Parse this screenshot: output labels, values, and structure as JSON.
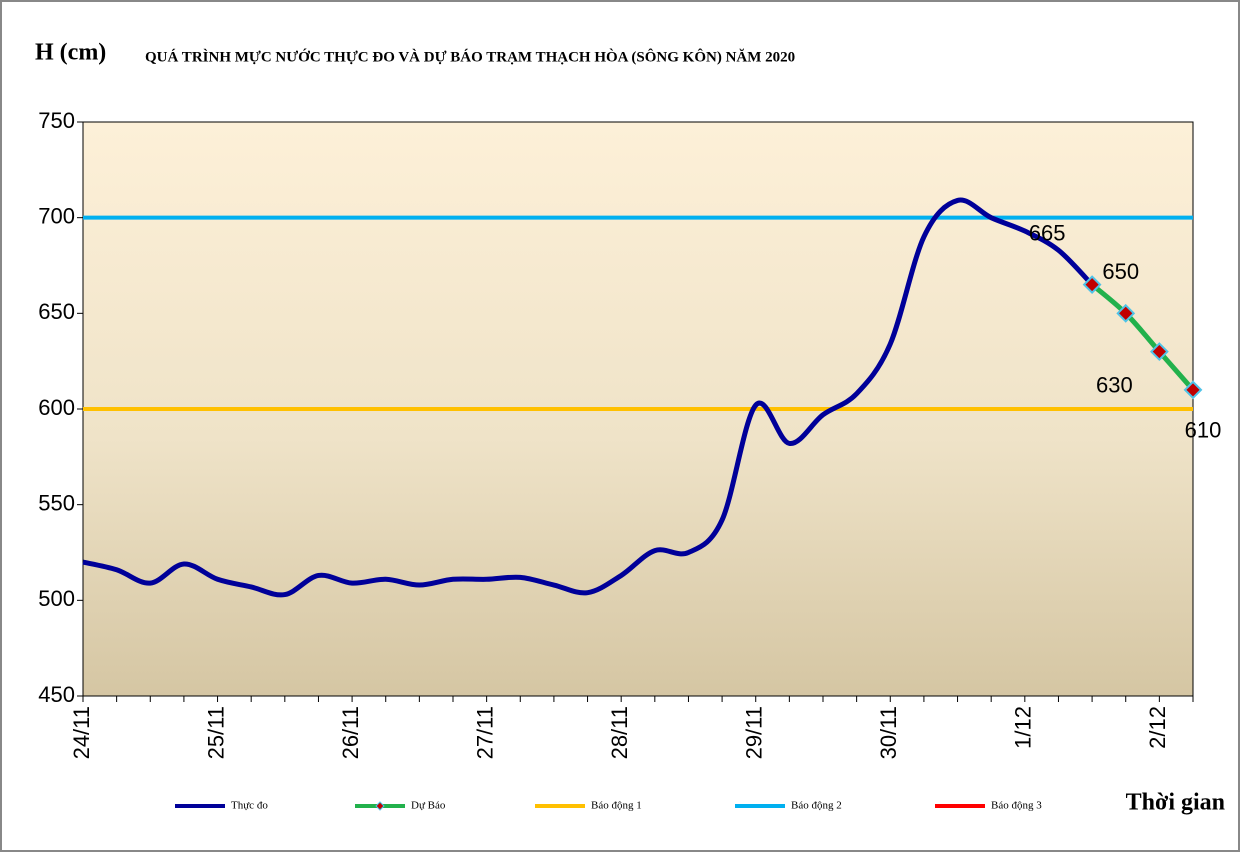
{
  "chart_data": {
    "type": "line",
    "y_label": "H (cm)",
    "title": "QUÁ TRÌNH MỰC NƯỚC THỰC ĐO VÀ DỰ BÁO TRẠM THẠCH HÒA (SÔNG KÔN) NĂM  2020",
    "x_label": "Thời gian",
    "categories": [
      "24/11",
      null,
      null,
      null,
      "25/11",
      null,
      null,
      null,
      "26/11",
      null,
      null,
      null,
      "27/11",
      null,
      null,
      null,
      "28/11",
      null,
      null,
      null,
      "29/11",
      null,
      null,
      null,
      "30/11",
      null,
      null,
      null,
      "1/12",
      null,
      null,
      null,
      "2/12",
      null
    ],
    "ylim": [
      450,
      750
    ],
    "yticks": [
      450,
      500,
      550,
      600,
      650,
      700,
      750
    ],
    "series": [
      {
        "name": "Thực đo",
        "color": "#000099",
        "values": [
          520,
          516,
          509,
          519,
          511,
          507,
          503,
          513,
          509,
          511,
          508,
          511,
          511,
          512,
          508,
          504,
          513,
          526,
          525,
          542,
          602,
          582,
          597,
          608,
          634,
          690,
          709,
          700,
          693,
          683,
          665,
          null,
          null,
          null
        ]
      },
      {
        "name": "Dự Báo",
        "color": "#22b14c",
        "values": [
          null,
          null,
          null,
          null,
          null,
          null,
          null,
          null,
          null,
          null,
          null,
          null,
          null,
          null,
          null,
          null,
          null,
          null,
          null,
          null,
          null,
          null,
          null,
          null,
          null,
          null,
          null,
          null,
          null,
          null,
          665,
          650,
          630,
          610
        ]
      },
      {
        "name": "Báo động 1",
        "color": "#ffc000",
        "values": [
          600,
          600,
          600,
          600,
          600,
          600,
          600,
          600,
          600,
          600,
          600,
          600,
          600,
          600,
          600,
          600,
          600,
          600,
          600,
          600,
          600,
          600,
          600,
          600,
          600,
          600,
          600,
          600,
          600,
          600,
          600,
          600,
          600,
          600
        ]
      },
      {
        "name": "Báo động 2",
        "color": "#00b0f0",
        "values": [
          700,
          700,
          700,
          700,
          700,
          700,
          700,
          700,
          700,
          700,
          700,
          700,
          700,
          700,
          700,
          700,
          700,
          700,
          700,
          700,
          700,
          700,
          700,
          700,
          700,
          700,
          700,
          700,
          700,
          700,
          700,
          700,
          700,
          700
        ]
      },
      {
        "name": "Báo động 3",
        "color": "#ff0000",
        "values": [
          null,
          null,
          null,
          null,
          null,
          null,
          null,
          null,
          null,
          null,
          null,
          null,
          null,
          null,
          null,
          null,
          null,
          null,
          null,
          null,
          null,
          null,
          null,
          null,
          null,
          null,
          null,
          null,
          null,
          null,
          null,
          null,
          null,
          null
        ]
      }
    ]
  }
}
